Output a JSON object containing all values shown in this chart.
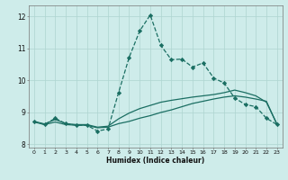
{
  "xlabel": "Humidex (Indice chaleur)",
  "background_color": "#ceecea",
  "grid_color": "#aed4d0",
  "line_color": "#1a6e62",
  "x_ticks": [
    0,
    1,
    2,
    3,
    4,
    5,
    6,
    7,
    8,
    9,
    10,
    11,
    12,
    13,
    14,
    15,
    16,
    17,
    18,
    19,
    20,
    21,
    22,
    23
  ],
  "ylim": [
    7.9,
    12.35
  ],
  "xlim": [
    -0.5,
    23.5
  ],
  "series": [
    {
      "x": [
        0,
        1,
        2,
        3,
        4,
        5,
        6,
        7,
        8,
        9,
        10,
        11,
        12,
        13,
        14,
        15,
        16,
        17,
        18,
        19,
        20,
        21,
        22,
        23
      ],
      "y": [
        8.7,
        8.62,
        8.7,
        8.62,
        8.6,
        8.6,
        8.52,
        8.54,
        8.65,
        8.72,
        8.82,
        8.9,
        9.0,
        9.08,
        9.18,
        9.28,
        9.35,
        9.42,
        9.48,
        9.52,
        9.48,
        9.42,
        9.35,
        8.62
      ],
      "linestyle": "-",
      "linewidth": 0.9,
      "marker": null
    },
    {
      "x": [
        0,
        1,
        2,
        3,
        4,
        5,
        6,
        7,
        8,
        9,
        10,
        11,
        12,
        13,
        14,
        15,
        16,
        17,
        18,
        19,
        20,
        21,
        22,
        23
      ],
      "y": [
        8.72,
        8.64,
        8.78,
        8.65,
        8.62,
        8.62,
        8.54,
        8.57,
        8.8,
        8.98,
        9.12,
        9.22,
        9.32,
        9.38,
        9.43,
        9.48,
        9.52,
        9.56,
        9.62,
        9.7,
        9.62,
        9.52,
        9.32,
        8.64
      ],
      "linestyle": "-",
      "linewidth": 0.9,
      "marker": null
    },
    {
      "x": [
        0,
        1,
        2,
        3,
        4,
        5,
        6,
        7,
        8,
        9,
        10,
        11,
        12,
        13,
        14,
        15,
        16,
        17,
        18,
        19,
        20,
        21,
        22,
        23
      ],
      "y": [
        8.72,
        8.62,
        8.82,
        8.65,
        8.6,
        8.6,
        8.42,
        8.48,
        9.62,
        10.72,
        11.55,
        12.05,
        11.1,
        10.65,
        10.67,
        10.42,
        10.55,
        10.08,
        9.92,
        9.45,
        9.25,
        9.18,
        8.82,
        8.62
      ],
      "linestyle": "--",
      "linewidth": 0.9,
      "marker": "D",
      "markersize": 2.2
    }
  ]
}
